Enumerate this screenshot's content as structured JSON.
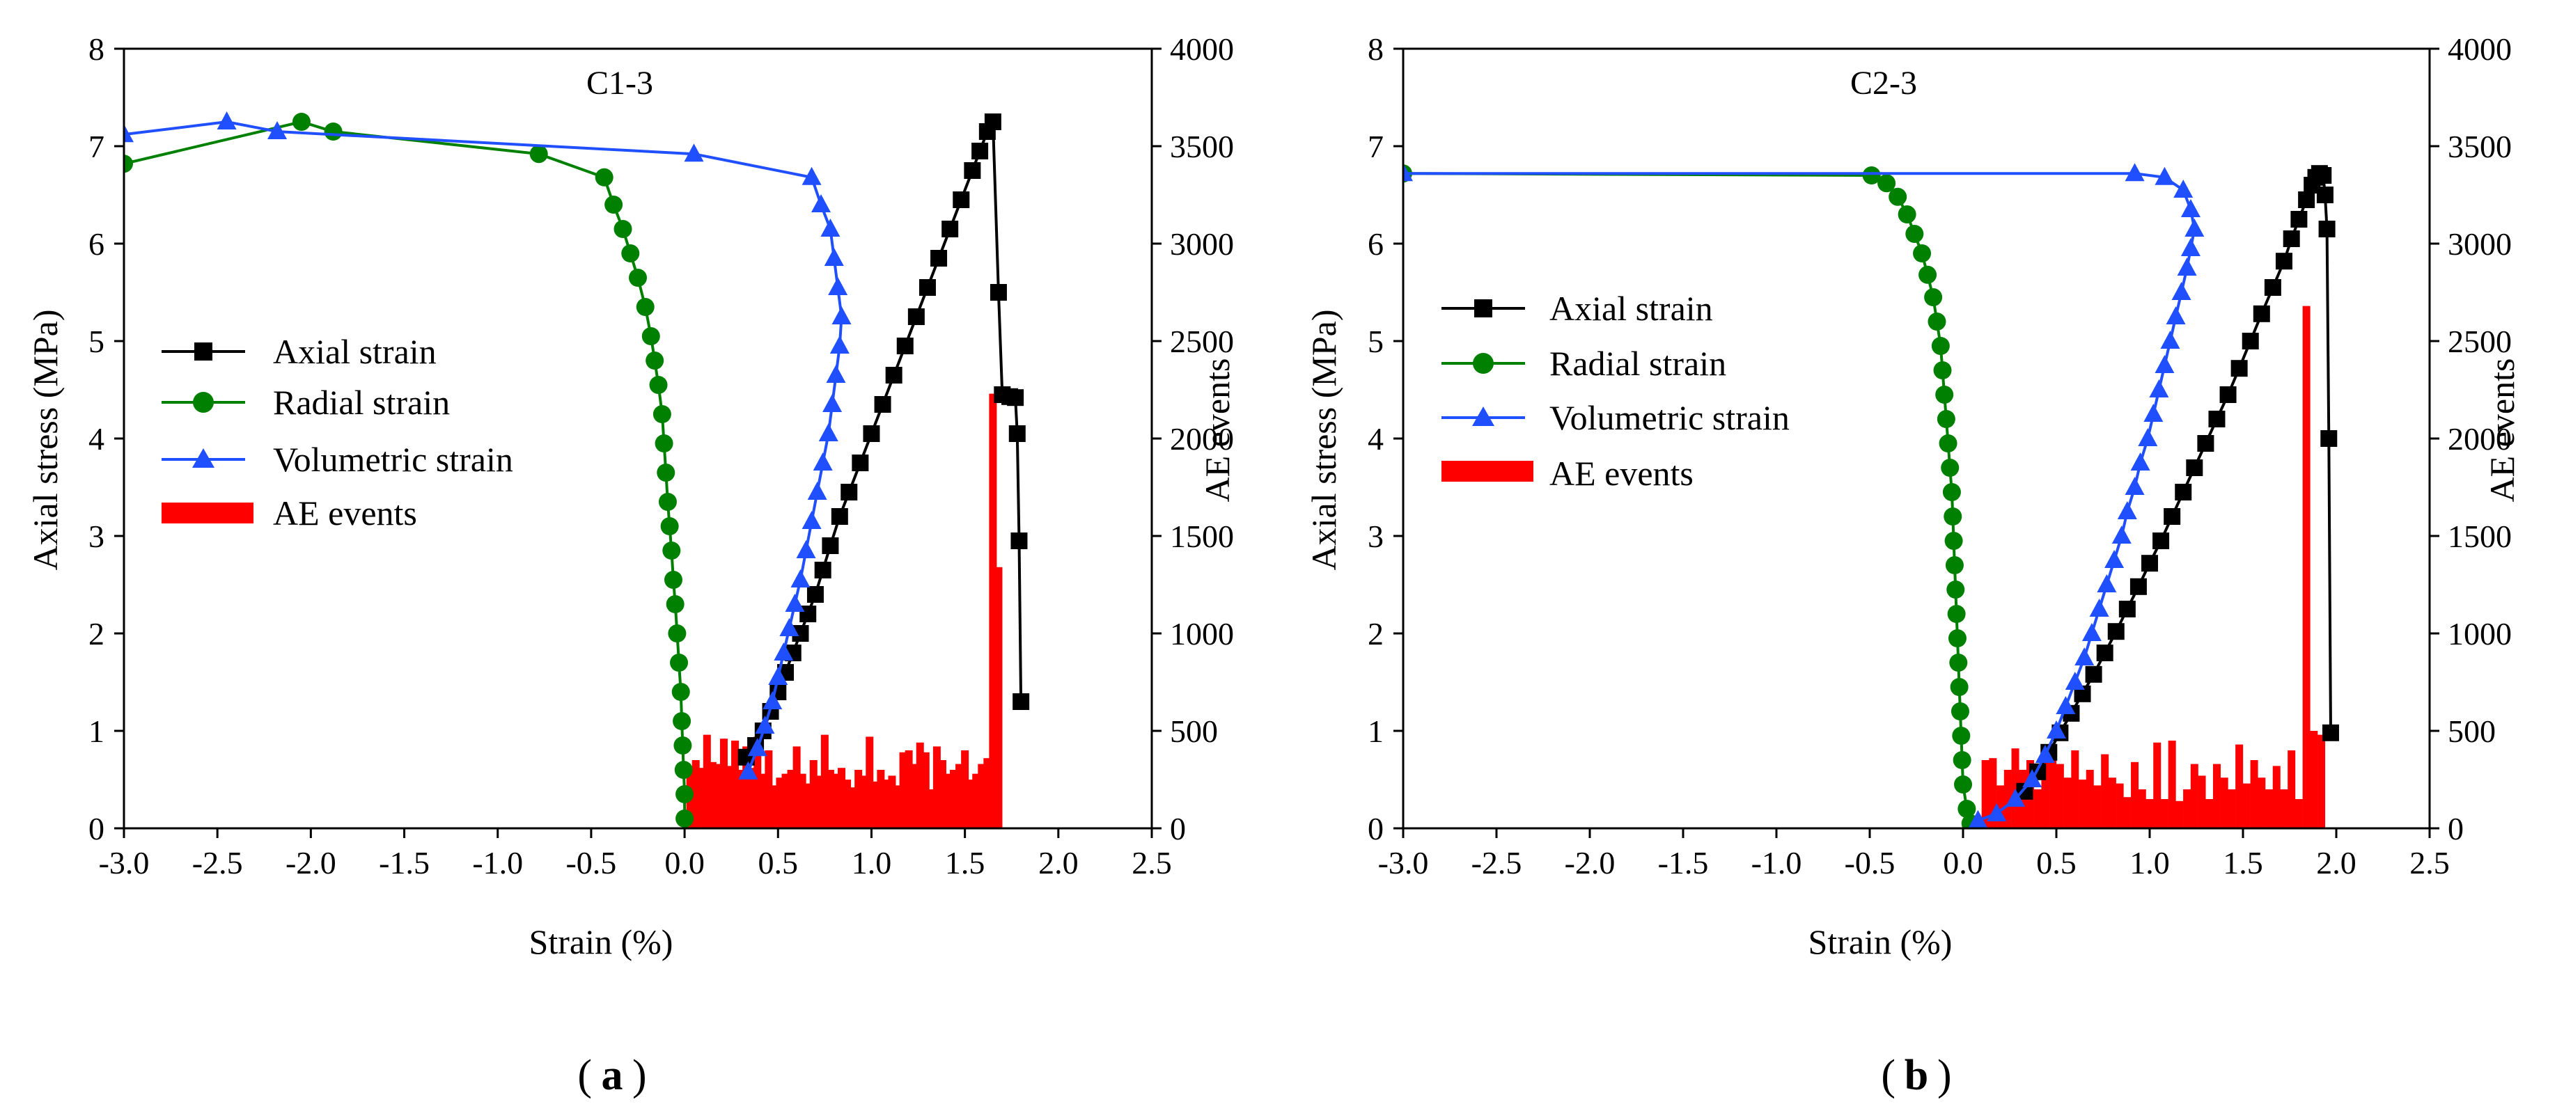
{
  "chart_data": [
    {
      "type": "line",
      "title": "C1-3",
      "panel_label": "a",
      "xlabel": "Strain (%)",
      "ylabel": "Axial stress (MPa)",
      "y2label": "AE events",
      "xlim": [
        -3.0,
        2.5
      ],
      "ylim": [
        0,
        8
      ],
      "y2lim": [
        0,
        4000
      ],
      "xticks": [
        "-3.0",
        "-2.5",
        "-2.0",
        "-1.5",
        "-1.0",
        "-0.5",
        "0.0",
        "0.5",
        "1.0",
        "1.5",
        "2.0",
        "2.5"
      ],
      "yticks": [
        "0",
        "1",
        "2",
        "3",
        "4",
        "5",
        "6",
        "7",
        "8"
      ],
      "y2ticks": [
        "0",
        "500",
        "1000",
        "1500",
        "2000",
        "2500",
        "3000",
        "3500",
        "4000"
      ],
      "legend": [
        "Axial strain",
        "Radial strain",
        "Volumetric strain",
        "AE events"
      ],
      "legend_position": "left",
      "series": [
        {
          "name": "Axial strain",
          "color": "#000000",
          "marker": "square",
          "axis": "left",
          "points": [
            [
              0.33,
              0.73
            ],
            [
              0.38,
              0.85
            ],
            [
              0.42,
              1.0
            ],
            [
              0.46,
              1.2
            ],
            [
              0.5,
              1.4
            ],
            [
              0.54,
              1.6
            ],
            [
              0.58,
              1.8
            ],
            [
              0.62,
              2.0
            ],
            [
              0.66,
              2.2
            ],
            [
              0.7,
              2.4
            ],
            [
              0.74,
              2.65
            ],
            [
              0.78,
              2.9
            ],
            [
              0.83,
              3.2
            ],
            [
              0.88,
              3.45
            ],
            [
              0.94,
              3.75
            ],
            [
              1.0,
              4.05
            ],
            [
              1.06,
              4.35
            ],
            [
              1.12,
              4.65
            ],
            [
              1.18,
              4.95
            ],
            [
              1.24,
              5.25
            ],
            [
              1.3,
              5.55
            ],
            [
              1.36,
              5.85
            ],
            [
              1.42,
              6.15
            ],
            [
              1.48,
              6.45
            ],
            [
              1.54,
              6.75
            ],
            [
              1.58,
              6.95
            ],
            [
              1.62,
              7.15
            ],
            [
              1.65,
              7.25
            ],
            [
              1.68,
              5.5
            ],
            [
              1.7,
              4.45
            ],
            [
              1.74,
              4.43
            ],
            [
              1.77,
              4.42
            ],
            [
              1.78,
              4.05
            ],
            [
              1.79,
              2.95
            ],
            [
              1.8,
              1.3
            ]
          ]
        },
        {
          "name": "Radial strain",
          "color": "#008000",
          "marker": "circle",
          "axis": "left",
          "points": [
            [
              -3.0,
              6.82
            ],
            [
              -2.05,
              7.25
            ],
            [
              -1.88,
              7.15
            ],
            [
              -0.78,
              6.92
            ],
            [
              -0.43,
              6.68
            ],
            [
              -0.38,
              6.4
            ],
            [
              -0.33,
              6.15
            ],
            [
              -0.29,
              5.9
            ],
            [
              -0.25,
              5.65
            ],
            [
              -0.21,
              5.35
            ],
            [
              -0.18,
              5.05
            ],
            [
              -0.16,
              4.8
            ],
            [
              -0.14,
              4.55
            ],
            [
              -0.12,
              4.25
            ],
            [
              -0.11,
              3.95
            ],
            [
              -0.1,
              3.65
            ],
            [
              -0.09,
              3.35
            ],
            [
              -0.08,
              3.1
            ],
            [
              -0.07,
              2.85
            ],
            [
              -0.06,
              2.55
            ],
            [
              -0.05,
              2.3
            ],
            [
              -0.04,
              2.0
            ],
            [
              -0.03,
              1.7
            ],
            [
              -0.02,
              1.4
            ],
            [
              -0.015,
              1.1
            ],
            [
              -0.01,
              0.85
            ],
            [
              -0.005,
              0.6
            ],
            [
              0.0,
              0.35
            ],
            [
              0.0,
              0.1
            ]
          ]
        },
        {
          "name": "Volumetric strain",
          "color": "#1f4fff",
          "marker": "triangle",
          "axis": "left",
          "points": [
            [
              -3.0,
              7.12
            ],
            [
              -2.45,
              7.25
            ],
            [
              -2.18,
              7.15
            ],
            [
              0.05,
              6.92
            ],
            [
              0.68,
              6.68
            ],
            [
              0.73,
              6.4
            ],
            [
              0.78,
              6.15
            ],
            [
              0.8,
              5.85
            ],
            [
              0.82,
              5.55
            ],
            [
              0.84,
              5.25
            ],
            [
              0.83,
              4.95
            ],
            [
              0.81,
              4.65
            ],
            [
              0.79,
              4.35
            ],
            [
              0.77,
              4.05
            ],
            [
              0.74,
              3.75
            ],
            [
              0.71,
              3.45
            ],
            [
              0.68,
              3.15
            ],
            [
              0.65,
              2.85
            ],
            [
              0.62,
              2.55
            ],
            [
              0.59,
              2.3
            ],
            [
              0.56,
              2.05
            ],
            [
              0.53,
              1.8
            ],
            [
              0.5,
              1.55
            ],
            [
              0.47,
              1.3
            ],
            [
              0.43,
              1.05
            ],
            [
              0.39,
              0.82
            ],
            [
              0.34,
              0.58
            ]
          ]
        },
        {
          "name": "AE events",
          "color": "#ff0000",
          "type": "bar",
          "axis": "right",
          "x": [
            0.03,
            0.06,
            0.09,
            0.12,
            0.15,
            0.18,
            0.21,
            0.24,
            0.27,
            0.3,
            0.33,
            0.36,
            0.39,
            0.42,
            0.45,
            0.48,
            0.51,
            0.54,
            0.57,
            0.6,
            0.63,
            0.66,
            0.69,
            0.72,
            0.75,
            0.78,
            0.81,
            0.84,
            0.87,
            0.9,
            0.93,
            0.96,
            0.99,
            1.02,
            1.05,
            1.08,
            1.11,
            1.14,
            1.17,
            1.2,
            1.23,
            1.26,
            1.29,
            1.32,
            1.35,
            1.38,
            1.41,
            1.44,
            1.47,
            1.5,
            1.53,
            1.56,
            1.59,
            1.62,
            1.65,
            1.68
          ],
          "values": [
            300,
            350,
            310,
            480,
            340,
            330,
            460,
            320,
            450,
            300,
            420,
            310,
            470,
            280,
            400,
            220,
            260,
            280,
            300,
            420,
            280,
            230,
            350,
            270,
            480,
            300,
            280,
            310,
            250,
            210,
            300,
            270,
            470,
            240,
            300,
            250,
            270,
            220,
            390,
            400,
            330,
            440,
            390,
            200,
            420,
            350,
            280,
            300,
            330,
            400,
            250,
            280,
            330,
            360,
            2230,
            1340
          ]
        }
      ]
    },
    {
      "type": "line",
      "title": "C2-3",
      "panel_label": "b",
      "xlabel": "Strain (%)",
      "ylabel": "Axial stress (MPa)",
      "y2label": "AE events",
      "xlim": [
        -3.0,
        2.5
      ],
      "ylim": [
        0,
        8
      ],
      "y2lim": [
        0,
        4000
      ],
      "xticks": [
        "-3.0",
        "-2.5",
        "-2.0",
        "-1.5",
        "-1.0",
        "-0.5",
        "0.0",
        "0.5",
        "1.0",
        "1.5",
        "2.0",
        "2.5"
      ],
      "yticks": [
        "0",
        "1",
        "2",
        "3",
        "4",
        "5",
        "6",
        "7",
        "8"
      ],
      "y2ticks": [
        "0",
        "500",
        "1000",
        "1500",
        "2000",
        "2500",
        "3000",
        "3500",
        "4000"
      ],
      "legend": [
        "Axial strain",
        "Radial strain",
        "Volumetric strain",
        "AE events"
      ],
      "legend_position": "center",
      "series": [
        {
          "name": "Axial strain",
          "color": "#000000",
          "marker": "square",
          "axis": "left",
          "points": [
            [
              0.33,
              0.38
            ],
            [
              0.4,
              0.58
            ],
            [
              0.46,
              0.78
            ],
            [
              0.52,
              0.98
            ],
            [
              0.58,
              1.18
            ],
            [
              0.64,
              1.38
            ],
            [
              0.7,
              1.58
            ],
            [
              0.76,
              1.8
            ],
            [
              0.82,
              2.02
            ],
            [
              0.88,
              2.25
            ],
            [
              0.94,
              2.48
            ],
            [
              1.0,
              2.72
            ],
            [
              1.06,
              2.95
            ],
            [
              1.12,
              3.2
            ],
            [
              1.18,
              3.45
            ],
            [
              1.24,
              3.7
            ],
            [
              1.3,
              3.95
            ],
            [
              1.36,
              4.2
            ],
            [
              1.42,
              4.45
            ],
            [
              1.48,
              4.72
            ],
            [
              1.54,
              5.0
            ],
            [
              1.6,
              5.28
            ],
            [
              1.66,
              5.55
            ],
            [
              1.72,
              5.82
            ],
            [
              1.76,
              6.05
            ],
            [
              1.8,
              6.25
            ],
            [
              1.84,
              6.45
            ],
            [
              1.87,
              6.6
            ],
            [
              1.89,
              6.68
            ],
            [
              1.91,
              6.72
            ],
            [
              1.93,
              6.7
            ],
            [
              1.94,
              6.5
            ],
            [
              1.95,
              6.15
            ],
            [
              1.96,
              4.0
            ],
            [
              1.97,
              0.98
            ]
          ]
        },
        {
          "name": "Radial strain",
          "color": "#008000",
          "marker": "circle",
          "axis": "left",
          "points": [
            [
              -3.0,
              6.72
            ],
            [
              -0.49,
              6.7
            ],
            [
              -0.41,
              6.62
            ],
            [
              -0.35,
              6.48
            ],
            [
              -0.3,
              6.3
            ],
            [
              -0.26,
              6.1
            ],
            [
              -0.22,
              5.9
            ],
            [
              -0.19,
              5.68
            ],
            [
              -0.16,
              5.45
            ],
            [
              -0.14,
              5.2
            ],
            [
              -0.12,
              4.95
            ],
            [
              -0.11,
              4.7
            ],
            [
              -0.1,
              4.45
            ],
            [
              -0.09,
              4.2
            ],
            [
              -0.08,
              3.95
            ],
            [
              -0.07,
              3.7
            ],
            [
              -0.06,
              3.45
            ],
            [
              -0.055,
              3.2
            ],
            [
              -0.05,
              2.95
            ],
            [
              -0.045,
              2.7
            ],
            [
              -0.04,
              2.45
            ],
            [
              -0.035,
              2.2
            ],
            [
              -0.03,
              1.95
            ],
            [
              -0.025,
              1.7
            ],
            [
              -0.02,
              1.45
            ],
            [
              -0.015,
              1.2
            ],
            [
              -0.01,
              0.95
            ],
            [
              -0.005,
              0.7
            ],
            [
              0.0,
              0.45
            ],
            [
              0.02,
              0.2
            ],
            [
              0.04,
              0.05
            ]
          ]
        },
        {
          "name": "Volumetric strain",
          "color": "#1f4fff",
          "marker": "triangle",
          "axis": "left",
          "points": [
            [
              -3.0,
              6.72
            ],
            [
              0.92,
              6.72
            ],
            [
              1.08,
              6.68
            ],
            [
              1.18,
              6.55
            ],
            [
              1.22,
              6.35
            ],
            [
              1.24,
              6.15
            ],
            [
              1.22,
              5.95
            ],
            [
              1.2,
              5.75
            ],
            [
              1.17,
              5.5
            ],
            [
              1.14,
              5.25
            ],
            [
              1.11,
              5.0
            ],
            [
              1.08,
              4.75
            ],
            [
              1.05,
              4.5
            ],
            [
              1.02,
              4.25
            ],
            [
              0.99,
              4.0
            ],
            [
              0.95,
              3.75
            ],
            [
              0.92,
              3.5
            ],
            [
              0.88,
              3.25
            ],
            [
              0.85,
              3.0
            ],
            [
              0.81,
              2.75
            ],
            [
              0.77,
              2.5
            ],
            [
              0.73,
              2.25
            ],
            [
              0.69,
              2.0
            ],
            [
              0.65,
              1.75
            ],
            [
              0.6,
              1.5
            ],
            [
              0.55,
              1.25
            ],
            [
              0.5,
              1.0
            ],
            [
              0.44,
              0.75
            ],
            [
              0.37,
              0.5
            ],
            [
              0.28,
              0.3
            ],
            [
              0.18,
              0.15
            ],
            [
              0.08,
              0.08
            ]
          ]
        },
        {
          "name": "AE events",
          "color": "#ff0000",
          "type": "bar",
          "axis": "right",
          "x": [
            0.12,
            0.16,
            0.2,
            0.24,
            0.28,
            0.32,
            0.36,
            0.4,
            0.44,
            0.48,
            0.52,
            0.56,
            0.6,
            0.64,
            0.68,
            0.72,
            0.76,
            0.8,
            0.84,
            0.88,
            0.92,
            0.96,
            1.0,
            1.04,
            1.08,
            1.12,
            1.16,
            1.2,
            1.24,
            1.28,
            1.32,
            1.36,
            1.4,
            1.44,
            1.48,
            1.52,
            1.56,
            1.6,
            1.64,
            1.68,
            1.72,
            1.76,
            1.8,
            1.84,
            1.88,
            1.92
          ],
          "values": [
            350,
            360,
            220,
            300,
            410,
            300,
            350,
            200,
            430,
            350,
            330,
            260,
            400,
            250,
            300,
            220,
            380,
            260,
            230,
            160,
            340,
            200,
            150,
            440,
            150,
            450,
            140,
            200,
            330,
            270,
            150,
            330,
            260,
            200,
            430,
            230,
            350,
            260,
            200,
            320,
            200,
            400,
            150,
            2680,
            500,
            480
          ]
        }
      ]
    }
  ]
}
